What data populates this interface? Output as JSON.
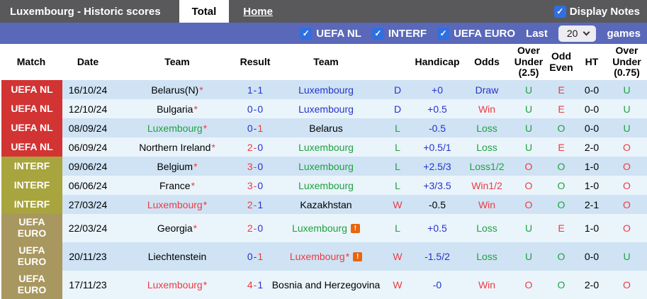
{
  "header": {
    "title": "Luxembourg - Historic scores",
    "tabs": [
      {
        "label": "Total",
        "active": true
      },
      {
        "label": "Home",
        "active": false
      }
    ],
    "display_notes": {
      "label": "Display Notes",
      "checked": true
    }
  },
  "filter_bar": {
    "competition_filters": [
      {
        "label": "UEFA NL",
        "checked": true
      },
      {
        "label": "INTERF",
        "checked": true
      },
      {
        "label": "UEFA EURO",
        "checked": true
      }
    ],
    "last_label": "Last",
    "games_count": "20",
    "games_label": "games"
  },
  "colors": {
    "text": {
      "blue": "#2534cc",
      "green": "#1fa23e",
      "red": "#ee3a41",
      "black": "#000000"
    },
    "badge_uefa_nl": "#d23333",
    "badge_interf": "#a8a43e",
    "badge_uefa_euro": "#a8975e",
    "row_odd_bg": "#cfe3f4",
    "row_even_bg": "#eaf4fb",
    "topbar_bg": "#59595b",
    "filterbar_bg": "#5a68ba",
    "checkbox_blue": "#2f6fe0",
    "note_icon_orange": "#e8650f"
  },
  "table": {
    "columns": [
      "Match",
      "Date",
      "Team",
      "Result",
      "Team",
      "Handicap",
      "Odds",
      "Over Under (2.5)",
      "Odd Even",
      "HT",
      "Over Under (0.75)"
    ],
    "rows": [
      {
        "comp": "UEFA NL",
        "comp_bg": "#d23333",
        "date": "16/10/24",
        "team1": {
          "name": "Belarus(N)",
          "star": true,
          "color": "black",
          "note": false
        },
        "score": {
          "home": "1",
          "away": "1",
          "home_color": "blue",
          "away_color": "blue"
        },
        "team2": {
          "name": "Luxembourg",
          "star": false,
          "color": "blue",
          "note": false
        },
        "res": {
          "t": "D",
          "c": "blue"
        },
        "hcp": {
          "t": "+0",
          "c": "blue"
        },
        "odds": {
          "t": "Draw",
          "c": "blue"
        },
        "ou25": {
          "t": "U",
          "c": "green"
        },
        "oe": {
          "t": "E",
          "c": "red"
        },
        "ht": "0-0",
        "ou075": {
          "t": "U",
          "c": "green"
        }
      },
      {
        "comp": "UEFA NL",
        "comp_bg": "#d23333",
        "date": "12/10/24",
        "team1": {
          "name": "Bulgaria",
          "star": true,
          "color": "black",
          "note": false
        },
        "score": {
          "home": "0",
          "away": "0",
          "home_color": "blue",
          "away_color": "blue"
        },
        "team2": {
          "name": "Luxembourg",
          "star": false,
          "color": "blue",
          "note": false
        },
        "res": {
          "t": "D",
          "c": "blue"
        },
        "hcp": {
          "t": "+0.5",
          "c": "blue"
        },
        "odds": {
          "t": "Win",
          "c": "red"
        },
        "ou25": {
          "t": "U",
          "c": "green"
        },
        "oe": {
          "t": "E",
          "c": "red"
        },
        "ht": "0-0",
        "ou075": {
          "t": "U",
          "c": "green"
        }
      },
      {
        "comp": "UEFA NL",
        "comp_bg": "#d23333",
        "date": "08/09/24",
        "team1": {
          "name": "Luxembourg",
          "star": true,
          "color": "green",
          "note": false
        },
        "score": {
          "home": "0",
          "away": "1",
          "home_color": "blue",
          "away_color": "red"
        },
        "team2": {
          "name": "Belarus",
          "star": false,
          "color": "black",
          "note": false
        },
        "res": {
          "t": "L",
          "c": "green"
        },
        "hcp": {
          "t": "-0.5",
          "c": "blue"
        },
        "odds": {
          "t": "Loss",
          "c": "green"
        },
        "ou25": {
          "t": "U",
          "c": "green"
        },
        "oe": {
          "t": "O",
          "c": "green"
        },
        "ht": "0-0",
        "ou075": {
          "t": "U",
          "c": "green"
        }
      },
      {
        "comp": "UEFA NL",
        "comp_bg": "#d23333",
        "date": "06/09/24",
        "team1": {
          "name": "Northern Ireland",
          "star": true,
          "color": "black",
          "note": false
        },
        "score": {
          "home": "2",
          "away": "0",
          "home_color": "red",
          "away_color": "blue"
        },
        "team2": {
          "name": "Luxembourg",
          "star": false,
          "color": "green",
          "note": false
        },
        "res": {
          "t": "L",
          "c": "green"
        },
        "hcp": {
          "t": "+0.5/1",
          "c": "blue"
        },
        "odds": {
          "t": "Loss",
          "c": "green"
        },
        "ou25": {
          "t": "U",
          "c": "green"
        },
        "oe": {
          "t": "E",
          "c": "red"
        },
        "ht": "2-0",
        "ou075": {
          "t": "O",
          "c": "red"
        }
      },
      {
        "comp": "INTERF",
        "comp_bg": "#a8a43e",
        "date": "09/06/24",
        "team1": {
          "name": "Belgium",
          "star": true,
          "color": "black",
          "note": false
        },
        "score": {
          "home": "3",
          "away": "0",
          "home_color": "red",
          "away_color": "blue"
        },
        "team2": {
          "name": "Luxembourg",
          "star": false,
          "color": "green",
          "note": false
        },
        "res": {
          "t": "L",
          "c": "green"
        },
        "hcp": {
          "t": "+2.5/3",
          "c": "blue"
        },
        "odds": {
          "t": "Loss1/2",
          "c": "green"
        },
        "ou25": {
          "t": "O",
          "c": "red"
        },
        "oe": {
          "t": "O",
          "c": "green"
        },
        "ht": "1-0",
        "ou075": {
          "t": "O",
          "c": "red"
        }
      },
      {
        "comp": "INTERF",
        "comp_bg": "#a8a43e",
        "date": "06/06/24",
        "team1": {
          "name": "France",
          "star": true,
          "color": "black",
          "note": false
        },
        "score": {
          "home": "3",
          "away": "0",
          "home_color": "red",
          "away_color": "blue"
        },
        "team2": {
          "name": "Luxembourg",
          "star": false,
          "color": "green",
          "note": false
        },
        "res": {
          "t": "L",
          "c": "green"
        },
        "hcp": {
          "t": "+3/3.5",
          "c": "blue"
        },
        "odds": {
          "t": "Win1/2",
          "c": "red"
        },
        "ou25": {
          "t": "O",
          "c": "red"
        },
        "oe": {
          "t": "O",
          "c": "green"
        },
        "ht": "1-0",
        "ou075": {
          "t": "O",
          "c": "red"
        }
      },
      {
        "comp": "INTERF",
        "comp_bg": "#a8a43e",
        "date": "27/03/24",
        "team1": {
          "name": "Luxembourg",
          "star": true,
          "color": "red",
          "note": false
        },
        "score": {
          "home": "2",
          "away": "1",
          "home_color": "red",
          "away_color": "blue"
        },
        "team2": {
          "name": "Kazakhstan",
          "star": false,
          "color": "black",
          "note": false
        },
        "res": {
          "t": "W",
          "c": "red"
        },
        "hcp": {
          "t": "-0.5",
          "c": "black"
        },
        "odds": {
          "t": "Win",
          "c": "red"
        },
        "ou25": {
          "t": "O",
          "c": "red"
        },
        "oe": {
          "t": "O",
          "c": "green"
        },
        "ht": "2-1",
        "ou075": {
          "t": "O",
          "c": "red"
        }
      },
      {
        "comp": "UEFA EURO",
        "comp_bg": "#a8975e",
        "date": "22/03/24",
        "team1": {
          "name": "Georgia",
          "star": true,
          "color": "black",
          "note": false
        },
        "score": {
          "home": "2",
          "away": "0",
          "home_color": "red",
          "away_color": "blue"
        },
        "team2": {
          "name": "Luxembourg",
          "star": false,
          "color": "green",
          "note": true
        },
        "res": {
          "t": "L",
          "c": "green"
        },
        "hcp": {
          "t": "+0.5",
          "c": "blue"
        },
        "odds": {
          "t": "Loss",
          "c": "green"
        },
        "ou25": {
          "t": "U",
          "c": "green"
        },
        "oe": {
          "t": "E",
          "c": "red"
        },
        "ht": "1-0",
        "ou075": {
          "t": "O",
          "c": "red"
        }
      },
      {
        "comp": "UEFA EURO",
        "comp_bg": "#a8975e",
        "date": "20/11/23",
        "team1": {
          "name": "Liechtenstein",
          "star": false,
          "color": "black",
          "note": false
        },
        "score": {
          "home": "0",
          "away": "1",
          "home_color": "blue",
          "away_color": "red"
        },
        "team2": {
          "name": "Luxembourg",
          "star": true,
          "color": "red",
          "note": true
        },
        "res": {
          "t": "W",
          "c": "red"
        },
        "hcp": {
          "t": "-1.5/2",
          "c": "blue"
        },
        "odds": {
          "t": "Loss",
          "c": "green"
        },
        "ou25": {
          "t": "U",
          "c": "green"
        },
        "oe": {
          "t": "O",
          "c": "green"
        },
        "ht": "0-0",
        "ou075": {
          "t": "U",
          "c": "green"
        }
      },
      {
        "comp": "UEFA EURO",
        "comp_bg": "#a8975e",
        "date": "17/11/23",
        "team1": {
          "name": "Luxembourg",
          "star": true,
          "color": "red",
          "note": false
        },
        "score": {
          "home": "4",
          "away": "1",
          "home_color": "red",
          "away_color": "blue"
        },
        "team2": {
          "name": "Bosnia and Herzegovina",
          "star": false,
          "color": "black",
          "note": false
        },
        "res": {
          "t": "W",
          "c": "red"
        },
        "hcp": {
          "t": "-0",
          "c": "blue"
        },
        "odds": {
          "t": "Win",
          "c": "red"
        },
        "ou25": {
          "t": "O",
          "c": "red"
        },
        "oe": {
          "t": "O",
          "c": "green"
        },
        "ht": "2-0",
        "ou075": {
          "t": "O",
          "c": "red"
        }
      }
    ]
  }
}
